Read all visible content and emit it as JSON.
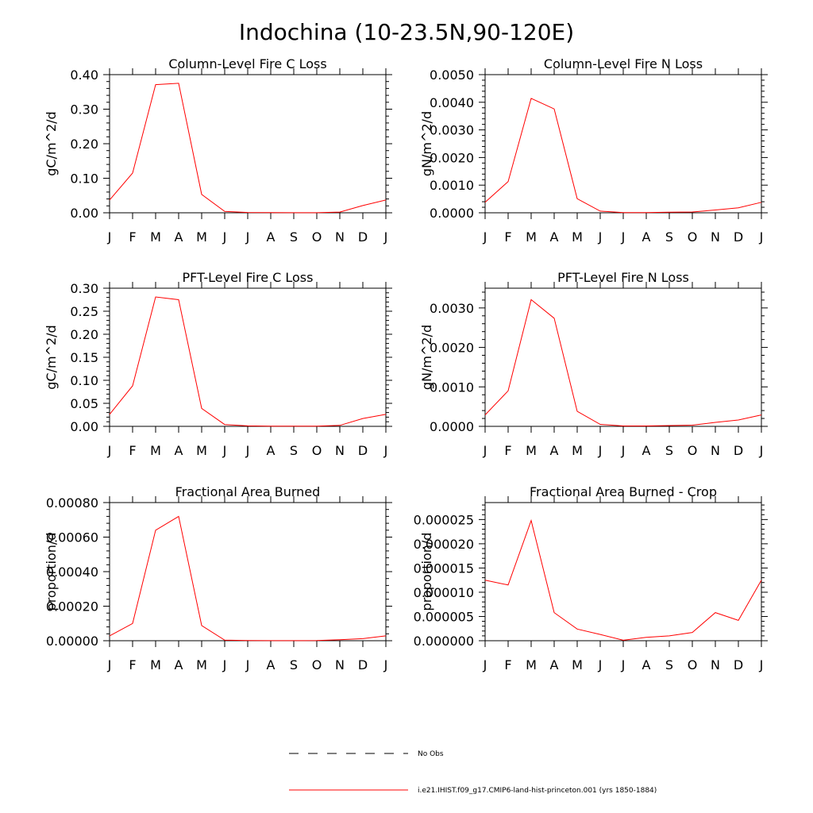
{
  "figure_title": "Indochina (10-23.5N,90-120E)",
  "legend": {
    "entries": [
      {
        "label": "No Obs",
        "style": "dashed",
        "color": "#000000"
      },
      {
        "label": "i.e21.IHIST.f09_g17.CMIP6-land-hist-princeton.001 (yrs 1850-1884)",
        "style": "solid",
        "color": "#ff0000"
      }
    ]
  },
  "chart_data": [
    {
      "type": "line",
      "title": "Column-Level Fire C Loss",
      "xlabel": "",
      "ylabel": "gC/m^2/d",
      "categories": [
        "J",
        "F",
        "M",
        "A",
        "M",
        "J",
        "J",
        "A",
        "S",
        "O",
        "N",
        "D",
        "J"
      ],
      "ylim": [
        0,
        0.4
      ],
      "yticks": [
        "0.00",
        "0.10",
        "0.20",
        "0.30",
        "0.40"
      ],
      "yminor_ticks": 4,
      "series": [
        {
          "color": "#ff0000",
          "values": [
            0.037,
            0.115,
            0.371,
            0.375,
            0.053,
            0.004,
            0.001,
            0.0005,
            0.0003,
            0.0003,
            0.002,
            0.021,
            0.037
          ]
        }
      ]
    },
    {
      "type": "line",
      "title": "Column-Level Fire N Loss",
      "xlabel": "",
      "ylabel": "gN/m^2/d",
      "categories": [
        "J",
        "F",
        "M",
        "A",
        "M",
        "J",
        "J",
        "A",
        "S",
        "O",
        "N",
        "D",
        "J"
      ],
      "ylim": [
        0,
        0.005
      ],
      "yticks": [
        "0.0000",
        "0.0010",
        "0.0020",
        "0.0030",
        "0.0040",
        "0.0050"
      ],
      "yminor_ticks": 4,
      "series": [
        {
          "color": "#ff0000",
          "values": [
            0.00038,
            0.00113,
            0.00414,
            0.00376,
            0.00051,
            6e-05,
            1e-05,
            1e-05,
            2e-05,
            3e-05,
            0.0001,
            0.00018,
            0.00038
          ]
        }
      ]
    },
    {
      "type": "line",
      "title": "PFT-Level Fire C Loss",
      "xlabel": "",
      "ylabel": "gC/m^2/d",
      "categories": [
        "J",
        "F",
        "M",
        "A",
        "M",
        "J",
        "J",
        "A",
        "S",
        "O",
        "N",
        "D",
        "J"
      ],
      "ylim": [
        0,
        0.3
      ],
      "yticks": [
        "0.00",
        "0.05",
        "0.10",
        "0.15",
        "0.20",
        "0.25",
        "0.30"
      ],
      "yminor_ticks": 4,
      "series": [
        {
          "color": "#ff0000",
          "values": [
            0.026,
            0.088,
            0.281,
            0.275,
            0.039,
            0.004,
            0.001,
            0.0005,
            0.0003,
            0.0003,
            0.002,
            0.017,
            0.026
          ]
        }
      ]
    },
    {
      "type": "line",
      "title": "PFT-Level Fire N Loss",
      "xlabel": "",
      "ylabel": "gN/m^2/d",
      "categories": [
        "J",
        "F",
        "M",
        "A",
        "M",
        "J",
        "J",
        "A",
        "S",
        "O",
        "N",
        "D",
        "J"
      ],
      "ylim": [
        0,
        0.0035
      ],
      "yticks": [
        "0.0000",
        "0.0010",
        "0.0020",
        "0.0030"
      ],
      "yminor_ticks": 4,
      "series": [
        {
          "color": "#ff0000",
          "values": [
            0.00029,
            0.0009,
            0.00321,
            0.00274,
            0.00038,
            5e-05,
            1e-05,
            1e-05,
            2e-05,
            3e-05,
            0.0001,
            0.00016,
            0.00029
          ]
        }
      ]
    },
    {
      "type": "line",
      "title": "Fractional Area Burned",
      "xlabel": "",
      "ylabel": "proportion/d",
      "categories": [
        "J",
        "F",
        "M",
        "A",
        "M",
        "J",
        "J",
        "A",
        "S",
        "O",
        "N",
        "D",
        "J"
      ],
      "ylim": [
        0,
        0.0008
      ],
      "yticks": [
        "0.00000",
        "0.00020",
        "0.00040",
        "0.00060",
        "0.00080"
      ],
      "yminor_ticks": 4,
      "series": [
        {
          "color": "#ff0000",
          "values": [
            2.8e-05,
            0.0001,
            0.00064,
            0.00072,
            8.8e-05,
            3e-06,
            1e-06,
            5e-07,
            4e-07,
            1e-06,
            6e-06,
            1.2e-05,
            2.8e-05
          ]
        }
      ]
    },
    {
      "type": "line",
      "title": "Fractional Area Burned - Crop",
      "xlabel": "",
      "ylabel": "proportion/d",
      "categories": [
        "J",
        "F",
        "M",
        "A",
        "M",
        "J",
        "J",
        "A",
        "S",
        "O",
        "N",
        "D",
        "J"
      ],
      "ylim": [
        0,
        2.85e-05
      ],
      "yticks": [
        "0.000000",
        "0.000005",
        "0.000010",
        "0.000015",
        "0.000020",
        "0.000025"
      ],
      "yminor_ticks": 4,
      "series": [
        {
          "color": "#ff0000",
          "values": [
            1.25e-05,
            1.15e-05,
            2.48e-05,
            5.8e-06,
            2.4e-06,
            1.3e-06,
            1e-07,
            7e-07,
            1e-06,
            1.7e-06,
            5.8e-06,
            4.2e-06,
            1.25e-05
          ]
        }
      ]
    }
  ]
}
